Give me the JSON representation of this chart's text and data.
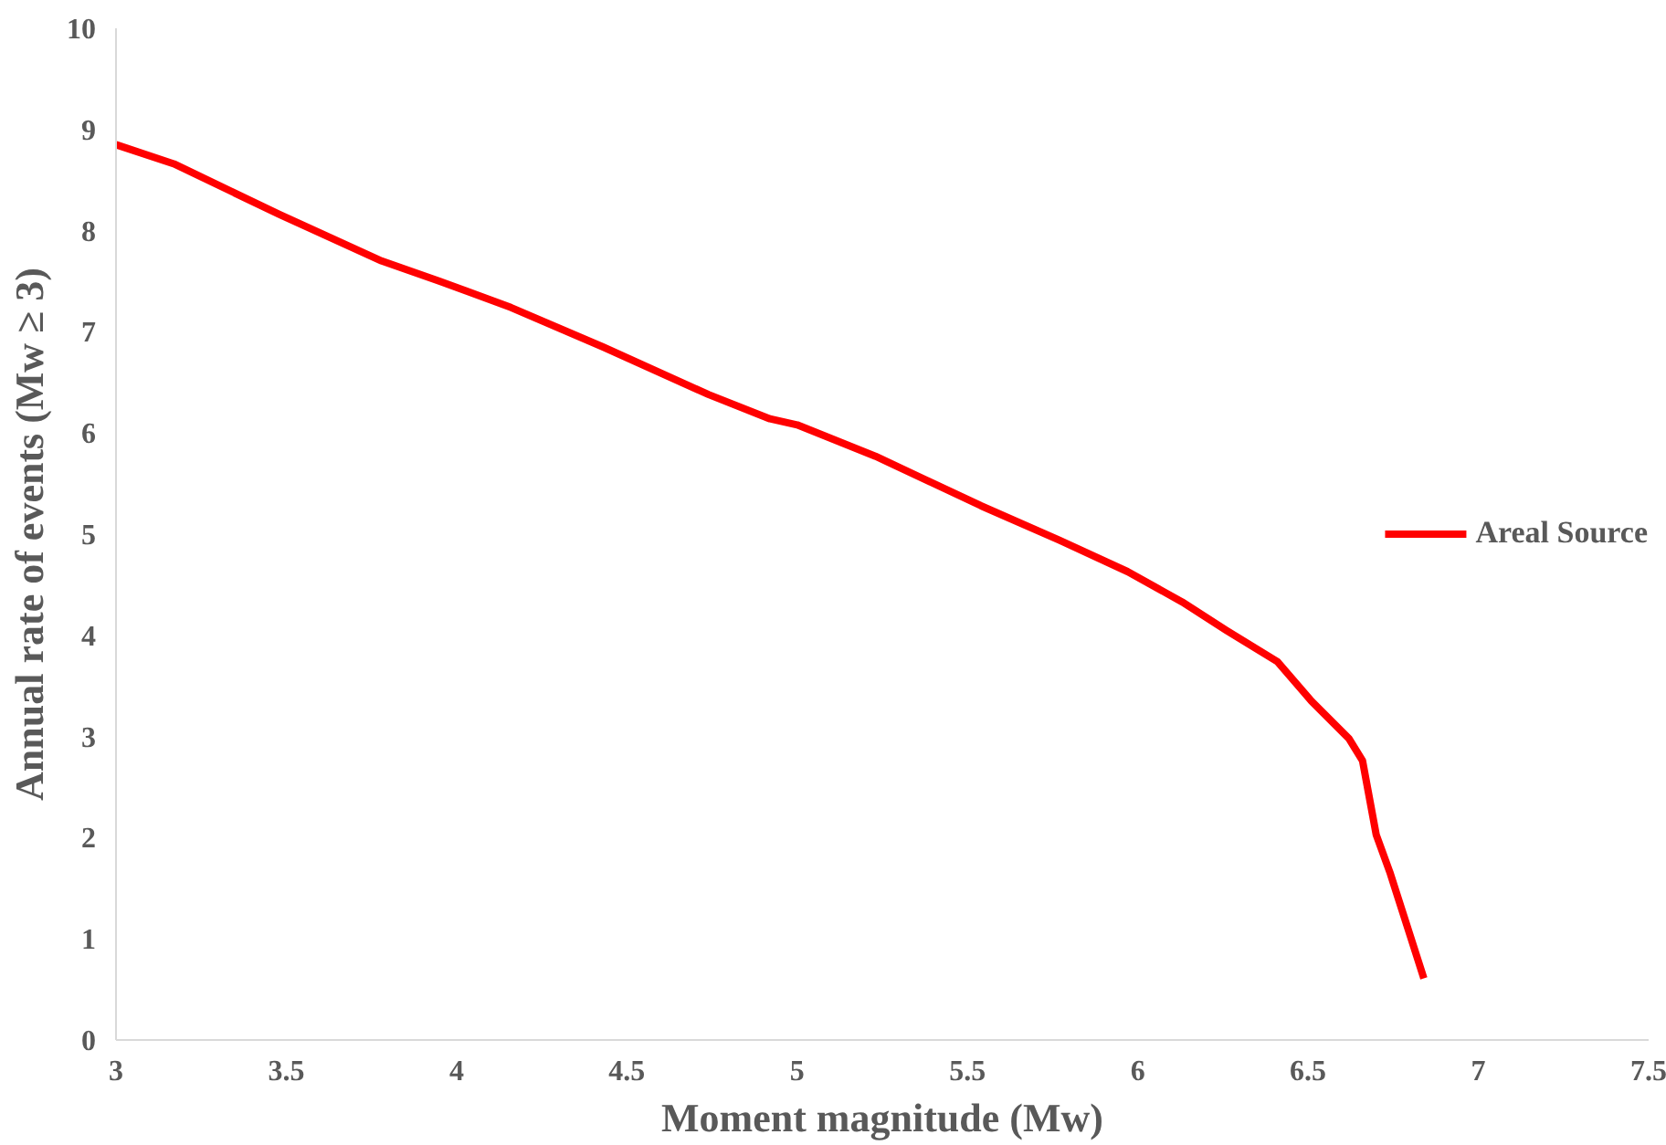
{
  "chart_data": {
    "type": "line",
    "xlabel": "Moment magnitude (Mw)",
    "ylabel": "Annual rate of events (Mw ≥ 3)",
    "xlim": [
      3,
      7.5
    ],
    "xticks": [
      3,
      3.5,
      4,
      4.5,
      5,
      5.5,
      6,
      6.5,
      7,
      7.5
    ],
    "ylim": [
      0,
      10
    ],
    "yticks": [
      0,
      1,
      2,
      3,
      4,
      5,
      6,
      7,
      8,
      9,
      10
    ],
    "grid": false,
    "legend": "right",
    "marker": "none",
    "line_style": "solid",
    "series": [
      {
        "name": "Areal Source",
        "color": "#ff0000",
        "x": [
          3,
          3.17,
          3.48,
          3.78,
          3.95,
          4.16,
          4.43,
          4.74,
          4.92,
          5.0,
          5.23,
          5.54,
          5.77,
          5.97,
          6.13,
          6.26,
          6.41,
          6.51,
          6.62,
          6.66,
          6.7,
          6.74,
          6.84
        ],
        "values": [
          8.85,
          8.66,
          8.16,
          7.7,
          7.5,
          7.24,
          6.85,
          6.38,
          6.14,
          6.08,
          5.77,
          5.28,
          4.94,
          4.63,
          4.33,
          4.05,
          3.74,
          3.35,
          2.98,
          2.76,
          2.03,
          1.66,
          0.61
        ]
      }
    ]
  }
}
